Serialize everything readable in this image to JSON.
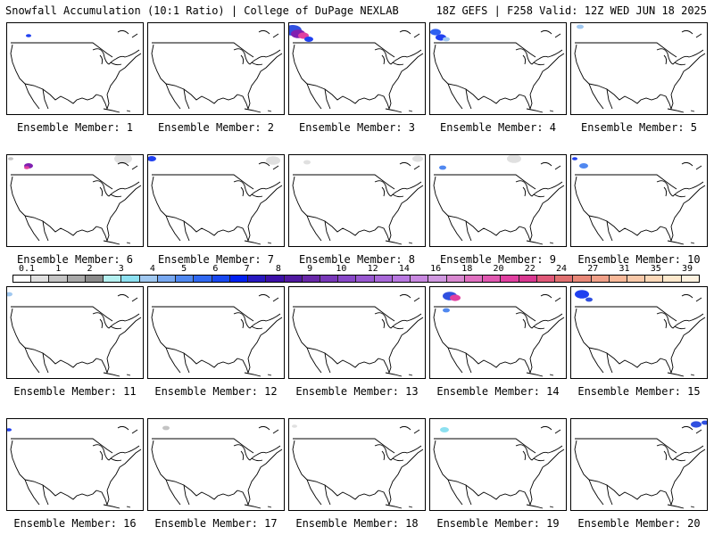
{
  "header": {
    "title_left": "Snowfall Accumulation (10:1 Ratio) | College of DuPage NEXLAB",
    "title_right": "18Z GEFS | F258 Valid: 12Z WED JUN 18 2025"
  },
  "member_prefix": "Ensemble Member: ",
  "members": [
    {
      "label": "Ensemble Member: 1"
    },
    {
      "label": "Ensemble Member: 2"
    },
    {
      "label": "Ensemble Member: 3"
    },
    {
      "label": "Ensemble Member: 4"
    },
    {
      "label": "Ensemble Member: 5"
    },
    {
      "label": "Ensemble Member: 6"
    },
    {
      "label": "Ensemble Member: 7"
    },
    {
      "label": "Ensemble Member: 8"
    },
    {
      "label": "Ensemble Member: 9"
    },
    {
      "label": "Ensemble Member: 10"
    },
    {
      "label": "Ensemble Member: 11"
    },
    {
      "label": "Ensemble Member: 12"
    },
    {
      "label": "Ensemble Member: 13"
    },
    {
      "label": "Ensemble Member: 14"
    },
    {
      "label": "Ensemble Member: 15"
    },
    {
      "label": "Ensemble Member: 16"
    },
    {
      "label": "Ensemble Member: 17"
    },
    {
      "label": "Ensemble Member: 18"
    },
    {
      "label": "Ensemble Member: 19"
    },
    {
      "label": "Ensemble Member: 20"
    }
  ],
  "legend": {
    "labels": [
      "0.1",
      "1",
      "2",
      "3",
      "4",
      "5",
      "6",
      "7",
      "8",
      "9",
      "10",
      "12",
      "14",
      "16",
      "18",
      "20",
      "22",
      "24",
      "27",
      "31",
      "35",
      "39"
    ],
    "colors": [
      "#ffffff",
      "#e0e0e0",
      "#c4c4c4",
      "#a8a8a8",
      "#8a8a8a",
      "#b4f0f0",
      "#8ce0f0",
      "#a0c8f0",
      "#78a8f0",
      "#5088f0",
      "#3068f0",
      "#1848f0",
      "#0020f0",
      "#2818c0",
      "#3c10a8",
      "#5018a0",
      "#6828a8",
      "#7838b8",
      "#8848c8",
      "#9858d0",
      "#a868d8",
      "#b878e0",
      "#c888e0",
      "#d098e0",
      "#d888d0",
      "#e070c0",
      "#e058b0",
      "#e040a0",
      "#d83890",
      "#e05878",
      "#e07070",
      "#e88878",
      "#f0a088",
      "#f8b898",
      "#f8c8a8",
      "#fcd8b8",
      "#fde8cc",
      "#fef2e0"
    ]
  }
}
